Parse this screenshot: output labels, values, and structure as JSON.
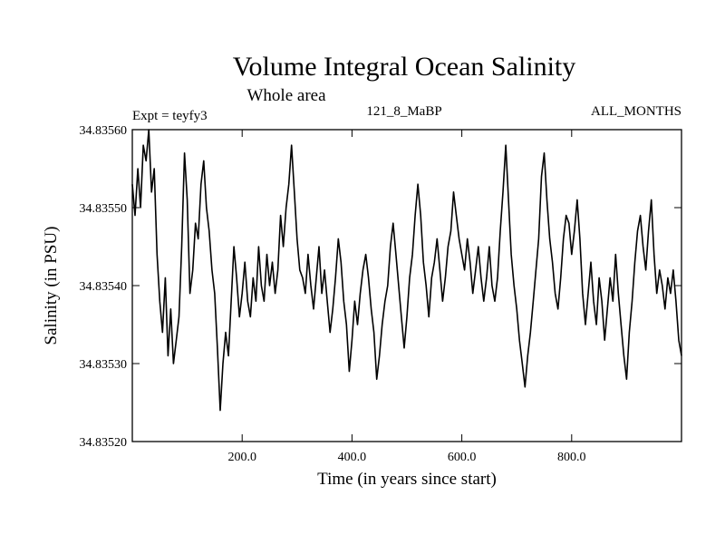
{
  "chart_data": {
    "type": "line",
    "title": "Volume Integral Ocean Salinity",
    "subtitle": "Whole area",
    "expt_label": "Expt = teyfy3",
    "run_label": "121_8_MaBP",
    "months_label": "ALL_MONTHS",
    "xlabel": "Time (in years since start)",
    "ylabel": "Salinity (in PSU)",
    "xlim": [
      0,
      1000
    ],
    "ylim": [
      34.8352,
      34.8356
    ],
    "x_ticks": [
      200,
      400,
      600,
      800
    ],
    "x_tick_labels": [
      "200.0",
      "400.0",
      "600.0",
      "800.0"
    ],
    "y_ticks": [
      34.8352,
      34.8353,
      34.8354,
      34.8355,
      34.8356
    ],
    "y_tick_labels": [
      "34.83520",
      "34.83530",
      "34.83540",
      "34.83550",
      "34.83560"
    ],
    "grid": false,
    "series": [
      {
        "name": "Salinity",
        "color": "#000000",
        "x": [
          0,
          5,
          10,
          15,
          20,
          25,
          30,
          35,
          40,
          45,
          50,
          55,
          60,
          65,
          70,
          75,
          80,
          85,
          90,
          95,
          100,
          105,
          110,
          115,
          120,
          125,
          130,
          135,
          140,
          145,
          150,
          155,
          160,
          165,
          170,
          175,
          180,
          185,
          190,
          195,
          200,
          205,
          210,
          215,
          220,
          225,
          230,
          235,
          240,
          245,
          250,
          255,
          260,
          265,
          270,
          275,
          280,
          285,
          290,
          295,
          300,
          305,
          310,
          315,
          320,
          325,
          330,
          335,
          340,
          345,
          350,
          355,
          360,
          365,
          370,
          375,
          380,
          385,
          390,
          395,
          400,
          405,
          410,
          415,
          420,
          425,
          430,
          435,
          440,
          445,
          450,
          455,
          460,
          465,
          470,
          475,
          480,
          485,
          490,
          495,
          500,
          505,
          510,
          515,
          520,
          525,
          530,
          535,
          540,
          545,
          550,
          555,
          560,
          565,
          570,
          575,
          580,
          585,
          590,
          595,
          600,
          605,
          610,
          615,
          620,
          625,
          630,
          635,
          640,
          645,
          650,
          655,
          660,
          665,
          670,
          675,
          680,
          685,
          690,
          695,
          700,
          705,
          710,
          715,
          720,
          725,
          730,
          735,
          740,
          745,
          750,
          755,
          760,
          765,
          770,
          775,
          780,
          785,
          790,
          795,
          800,
          805,
          810,
          815,
          820,
          825,
          830,
          835,
          840,
          845,
          850,
          855,
          860,
          865,
          870,
          875,
          880,
          885,
          890,
          895,
          900,
          905,
          910,
          915,
          920,
          925,
          930,
          935,
          940,
          945,
          950,
          955,
          960,
          965,
          970,
          975,
          980,
          985,
          990,
          995,
          1000
        ],
        "values": [
          34.83553,
          34.83549,
          34.83555,
          34.8355,
          34.83558,
          34.83556,
          34.8356,
          34.83552,
          34.83555,
          34.83544,
          34.83538,
          34.83534,
          34.83541,
          34.83531,
          34.83537,
          34.8353,
          34.83533,
          34.83536,
          34.83545,
          34.83557,
          34.83551,
          34.83539,
          34.83542,
          34.83548,
          34.83546,
          34.83553,
          34.83556,
          34.8355,
          34.83547,
          34.83542,
          34.83539,
          34.83532,
          34.83524,
          34.8353,
          34.83534,
          34.83531,
          34.83538,
          34.83545,
          34.83541,
          34.83536,
          34.83539,
          34.83543,
          34.83538,
          34.83536,
          34.83541,
          34.83538,
          34.83545,
          34.8354,
          34.83538,
          34.83544,
          34.8354,
          34.83543,
          34.83539,
          34.83542,
          34.83549,
          34.83545,
          34.8355,
          34.83553,
          34.83558,
          34.83552,
          34.83546,
          34.83542,
          34.83541,
          34.83539,
          34.83544,
          34.8354,
          34.83537,
          34.83541,
          34.83545,
          34.83539,
          34.83542,
          34.83538,
          34.83534,
          34.83537,
          34.83541,
          34.83546,
          34.83543,
          34.83538,
          34.83535,
          34.83529,
          34.83533,
          34.83538,
          34.83535,
          34.83539,
          34.83542,
          34.83544,
          34.83541,
          34.83537,
          34.83534,
          34.83528,
          34.83531,
          34.83535,
          34.83538,
          34.8354,
          34.83545,
          34.83548,
          34.83544,
          34.8354,
          34.83536,
          34.83532,
          34.83536,
          34.83541,
          34.83544,
          34.83549,
          34.83553,
          34.83549,
          34.83543,
          34.8354,
          34.83536,
          34.83541,
          34.83543,
          34.83546,
          34.83542,
          34.83538,
          34.83541,
          34.83545,
          34.83547,
          34.83552,
          34.83549,
          34.83546,
          34.83544,
          34.83542,
          34.83546,
          34.83543,
          34.83539,
          34.83542,
          34.83545,
          34.83541,
          34.83538,
          34.83541,
          34.83545,
          34.8354,
          34.83538,
          34.83541,
          34.83547,
          34.83552,
          34.83558,
          34.83551,
          34.83544,
          34.8354,
          34.83537,
          34.83533,
          34.8353,
          34.83527,
          34.83531,
          34.83534,
          34.83538,
          34.83542,
          34.83546,
          34.83554,
          34.83557,
          34.83551,
          34.83546,
          34.83543,
          34.83539,
          34.83537,
          34.83541,
          34.83546,
          34.83549,
          34.83548,
          34.83544,
          34.83547,
          34.83551,
          34.83546,
          34.83539,
          34.83535,
          34.83539,
          34.83543,
          34.83538,
          34.83535,
          34.83541,
          34.83538,
          34.83533,
          34.83537,
          34.83541,
          34.83538,
          34.83544,
          34.83539,
          34.83535,
          34.83531,
          34.83528,
          34.83534,
          34.83538,
          34.83543,
          34.83547,
          34.83549,
          34.83545,
          34.83542,
          34.83547,
          34.83551,
          34.83544,
          34.83539,
          34.83542,
          34.8354,
          34.83537,
          34.83541,
          34.83539,
          34.83542,
          34.83538,
          34.83533,
          34.83531
        ]
      }
    ]
  }
}
